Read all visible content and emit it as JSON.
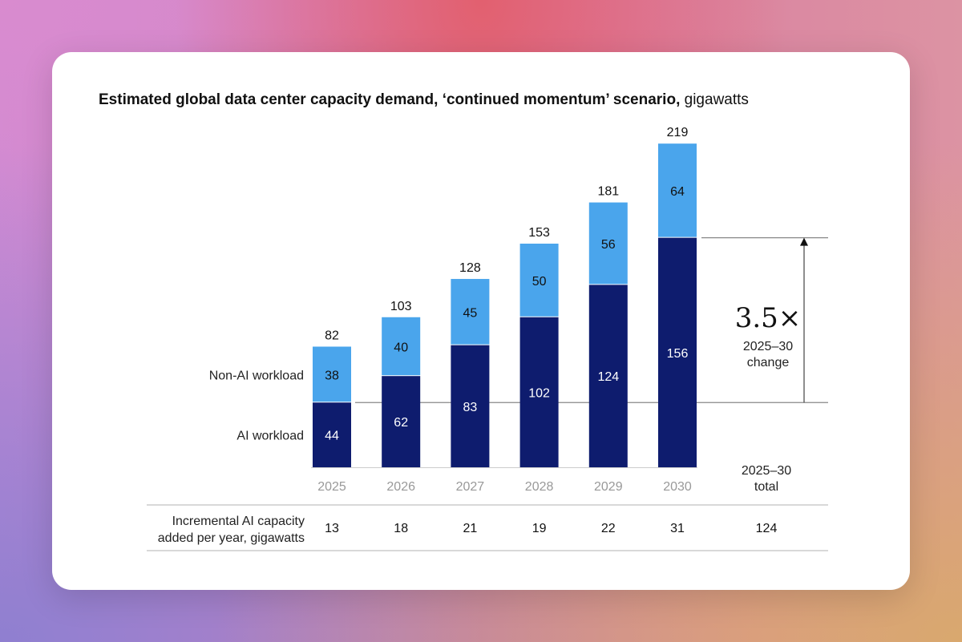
{
  "chart_data": {
    "type": "bar",
    "stacked": true,
    "title_bold": "Estimated global data center capacity demand, ‘continued momentum’ scenario,",
    "title_unit": "gigawatts",
    "categories": [
      "2025",
      "2026",
      "2027",
      "2028",
      "2029",
      "2030"
    ],
    "series": [
      {
        "name": "AI workload",
        "color": "#0e1c6e",
        "values": [
          44,
          62,
          83,
          102,
          124,
          156
        ]
      },
      {
        "name": "Non-AI workload",
        "color": "#4aa5ec",
        "values": [
          38,
          40,
          45,
          50,
          56,
          64
        ]
      }
    ],
    "totals": [
      82,
      103,
      128,
      153,
      181,
      219
    ],
    "ylim": [
      0,
      219
    ],
    "grid": false,
    "annotation": {
      "value": "3.5×",
      "label_line1": "2025–30",
      "label_line2": "change"
    },
    "table": {
      "row_label_line1": "Incremental AI capacity",
      "row_label_line2": "added per year, gigawatts",
      "values": [
        "13",
        "18",
        "21",
        "19",
        "22",
        "31"
      ],
      "total_header_line1": "2025–30",
      "total_header_line2": "total",
      "total_value": "124"
    }
  }
}
